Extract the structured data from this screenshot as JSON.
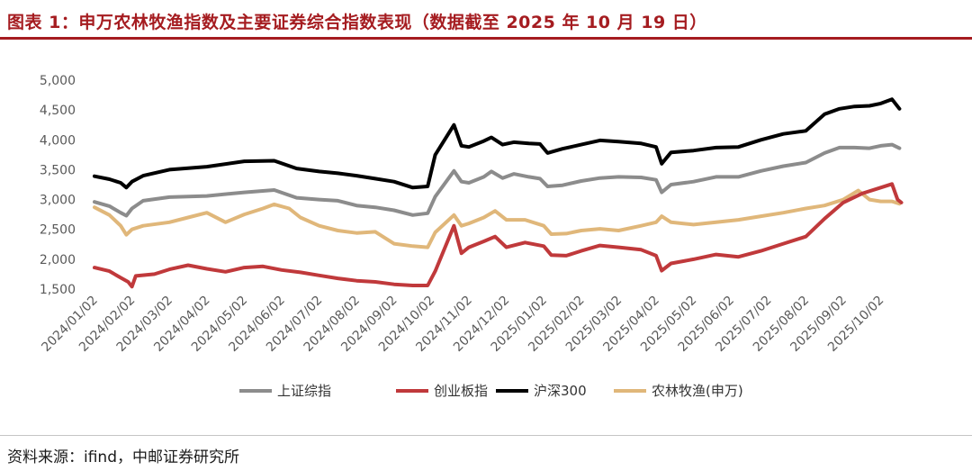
{
  "header": {
    "title": "图表 1：申万农林牧渔指数及主要证券综合指数表现（数据截至 2025 年 10 月 19 日）"
  },
  "footer": {
    "source": "资料来源：ifind，中邮证券研究所"
  },
  "colors": {
    "accent": "#a51c20",
    "shanghai": "#8c8c8c",
    "chinext": "#c0393b",
    "hs300": "#000000",
    "agri": "#e0b77a"
  },
  "chart_data": {
    "type": "line",
    "title": "申万农林牧渔指数及主要证券综合指数表现",
    "xlabel": "",
    "ylabel": "",
    "ylim": [
      1500,
      5000
    ],
    "yticks": [
      1500,
      2000,
      2500,
      3000,
      3500,
      4000,
      4500,
      5000
    ],
    "ytick_labels": [
      "1,500",
      "2,000",
      "2,500",
      "3,000",
      "3,500",
      "4,000",
      "4,500",
      "5,000"
    ],
    "x": [
      "2024/01/02",
      "2024/02/02",
      "2024/03/02",
      "2024/04/02",
      "2024/05/02",
      "2024/06/02",
      "2024/07/02",
      "2024/08/02",
      "2024/09/02",
      "2024/10/02",
      "2024/11/02",
      "2024/12/02",
      "2025/01/02",
      "2025/02/02",
      "2025/03/02",
      "2025/04/02",
      "2025/05/02",
      "2025/06/02",
      "2025/07/02",
      "2025/08/02",
      "2025/09/02",
      "2025/10/02"
    ],
    "legend_position": "bottom-center",
    "grid": false,
    "series": [
      {
        "name": "上证综指",
        "color": "#8c8c8c",
        "values": [
          [
            0,
            2960
          ],
          [
            0.4,
            2890
          ],
          [
            0.7,
            2780
          ],
          [
            0.85,
            2730
          ],
          [
            1.0,
            2850
          ],
          [
            1.3,
            2980
          ],
          [
            2.0,
            3040
          ],
          [
            3.0,
            3060
          ],
          [
            4.0,
            3120
          ],
          [
            4.8,
            3160
          ],
          [
            5.4,
            3030
          ],
          [
            6.0,
            3000
          ],
          [
            6.5,
            2980
          ],
          [
            7.0,
            2900
          ],
          [
            7.5,
            2870
          ],
          [
            8.0,
            2820
          ],
          [
            8.5,
            2740
          ],
          [
            8.9,
            2770
          ],
          [
            9.1,
            3050
          ],
          [
            9.6,
            3480
          ],
          [
            9.8,
            3300
          ],
          [
            10.0,
            3280
          ],
          [
            10.4,
            3380
          ],
          [
            10.6,
            3470
          ],
          [
            10.9,
            3360
          ],
          [
            11.2,
            3430
          ],
          [
            11.6,
            3380
          ],
          [
            11.9,
            3350
          ],
          [
            12.1,
            3220
          ],
          [
            12.5,
            3240
          ],
          [
            13.0,
            3310
          ],
          [
            13.5,
            3360
          ],
          [
            14.0,
            3380
          ],
          [
            14.6,
            3370
          ],
          [
            15.0,
            3330
          ],
          [
            15.15,
            3120
          ],
          [
            15.4,
            3250
          ],
          [
            16.0,
            3300
          ],
          [
            16.6,
            3380
          ],
          [
            17.2,
            3380
          ],
          [
            17.8,
            3480
          ],
          [
            18.4,
            3560
          ],
          [
            19.0,
            3620
          ],
          [
            19.5,
            3780
          ],
          [
            19.9,
            3870
          ],
          [
            20.3,
            3870
          ],
          [
            20.7,
            3860
          ],
          [
            21.0,
            3900
          ],
          [
            21.3,
            3920
          ],
          [
            21.5,
            3860
          ]
        ]
      },
      {
        "name": "创业板指",
        "color": "#c0393b",
        "values": [
          [
            0,
            1860
          ],
          [
            0.4,
            1800
          ],
          [
            0.7,
            1690
          ],
          [
            0.9,
            1620
          ],
          [
            1.0,
            1540
          ],
          [
            1.1,
            1720
          ],
          [
            1.6,
            1750
          ],
          [
            2.0,
            1830
          ],
          [
            2.5,
            1900
          ],
          [
            3.0,
            1840
          ],
          [
            3.5,
            1790
          ],
          [
            4.0,
            1860
          ],
          [
            4.5,
            1880
          ],
          [
            5.0,
            1820
          ],
          [
            5.5,
            1780
          ],
          [
            6.0,
            1730
          ],
          [
            6.5,
            1680
          ],
          [
            7.0,
            1640
          ],
          [
            7.5,
            1620
          ],
          [
            8.0,
            1580
          ],
          [
            8.5,
            1560
          ],
          [
            8.9,
            1560
          ],
          [
            9.1,
            1800
          ],
          [
            9.6,
            2560
          ],
          [
            9.8,
            2100
          ],
          [
            10.0,
            2200
          ],
          [
            10.4,
            2300
          ],
          [
            10.7,
            2380
          ],
          [
            11.0,
            2200
          ],
          [
            11.5,
            2280
          ],
          [
            12.0,
            2220
          ],
          [
            12.2,
            2070
          ],
          [
            12.6,
            2060
          ],
          [
            13.0,
            2140
          ],
          [
            13.5,
            2230
          ],
          [
            14.0,
            2200
          ],
          [
            14.6,
            2160
          ],
          [
            15.0,
            2060
          ],
          [
            15.15,
            1810
          ],
          [
            15.4,
            1930
          ],
          [
            16.0,
            2000
          ],
          [
            16.6,
            2080
          ],
          [
            17.2,
            2040
          ],
          [
            17.8,
            2140
          ],
          [
            18.4,
            2260
          ],
          [
            19.0,
            2380
          ],
          [
            19.5,
            2680
          ],
          [
            20.0,
            2950
          ],
          [
            20.5,
            3100
          ],
          [
            21.0,
            3200
          ],
          [
            21.3,
            3260
          ],
          [
            21.45,
            3000
          ],
          [
            21.55,
            2950
          ]
        ]
      },
      {
        "name": "沪深300",
        "color": "#000000",
        "values": [
          [
            0,
            3390
          ],
          [
            0.4,
            3340
          ],
          [
            0.7,
            3280
          ],
          [
            0.85,
            3200
          ],
          [
            1.0,
            3300
          ],
          [
            1.3,
            3400
          ],
          [
            2.0,
            3500
          ],
          [
            3.0,
            3550
          ],
          [
            4.0,
            3640
          ],
          [
            4.8,
            3650
          ],
          [
            5.4,
            3520
          ],
          [
            6.0,
            3470
          ],
          [
            6.5,
            3440
          ],
          [
            7.0,
            3400
          ],
          [
            7.5,
            3350
          ],
          [
            8.0,
            3300
          ],
          [
            8.5,
            3200
          ],
          [
            8.9,
            3220
          ],
          [
            9.1,
            3750
          ],
          [
            9.6,
            4250
          ],
          [
            9.8,
            3900
          ],
          [
            10.0,
            3880
          ],
          [
            10.4,
            3980
          ],
          [
            10.6,
            4040
          ],
          [
            10.9,
            3920
          ],
          [
            11.2,
            3960
          ],
          [
            11.6,
            3940
          ],
          [
            11.9,
            3930
          ],
          [
            12.1,
            3780
          ],
          [
            12.5,
            3850
          ],
          [
            13.0,
            3920
          ],
          [
            13.5,
            3990
          ],
          [
            14.0,
            3970
          ],
          [
            14.6,
            3940
          ],
          [
            15.0,
            3880
          ],
          [
            15.15,
            3600
          ],
          [
            15.4,
            3790
          ],
          [
            16.0,
            3820
          ],
          [
            16.6,
            3870
          ],
          [
            17.2,
            3880
          ],
          [
            17.8,
            4000
          ],
          [
            18.4,
            4100
          ],
          [
            19.0,
            4150
          ],
          [
            19.5,
            4430
          ],
          [
            19.9,
            4520
          ],
          [
            20.3,
            4560
          ],
          [
            20.7,
            4570
          ],
          [
            21.0,
            4610
          ],
          [
            21.3,
            4680
          ],
          [
            21.5,
            4520
          ]
        ]
      },
      {
        "name": "农林牧渔(申万)",
        "color": "#e0b77a",
        "values": [
          [
            0,
            2870
          ],
          [
            0.4,
            2740
          ],
          [
            0.7,
            2560
          ],
          [
            0.85,
            2410
          ],
          [
            1.0,
            2500
          ],
          [
            1.3,
            2560
          ],
          [
            2.0,
            2620
          ],
          [
            2.5,
            2700
          ],
          [
            3.0,
            2780
          ],
          [
            3.5,
            2620
          ],
          [
            4.0,
            2750
          ],
          [
            4.5,
            2850
          ],
          [
            4.8,
            2920
          ],
          [
            5.2,
            2850
          ],
          [
            5.5,
            2700
          ],
          [
            6.0,
            2560
          ],
          [
            6.5,
            2480
          ],
          [
            7.0,
            2440
          ],
          [
            7.5,
            2460
          ],
          [
            8.0,
            2260
          ],
          [
            8.5,
            2220
          ],
          [
            8.9,
            2200
          ],
          [
            9.1,
            2450
          ],
          [
            9.6,
            2740
          ],
          [
            9.8,
            2560
          ],
          [
            10.0,
            2600
          ],
          [
            10.4,
            2700
          ],
          [
            10.7,
            2810
          ],
          [
            11.0,
            2660
          ],
          [
            11.5,
            2660
          ],
          [
            12.0,
            2560
          ],
          [
            12.2,
            2420
          ],
          [
            12.6,
            2430
          ],
          [
            13.0,
            2480
          ],
          [
            13.5,
            2510
          ],
          [
            14.0,
            2480
          ],
          [
            14.6,
            2560
          ],
          [
            15.0,
            2620
          ],
          [
            15.15,
            2720
          ],
          [
            15.4,
            2620
          ],
          [
            16.0,
            2580
          ],
          [
            16.6,
            2620
          ],
          [
            17.2,
            2660
          ],
          [
            17.8,
            2720
          ],
          [
            18.4,
            2780
          ],
          [
            19.0,
            2850
          ],
          [
            19.5,
            2900
          ],
          [
            20.0,
            3000
          ],
          [
            20.4,
            3150
          ],
          [
            20.7,
            3000
          ],
          [
            21.0,
            2970
          ],
          [
            21.3,
            2970
          ],
          [
            21.5,
            2930
          ]
        ]
      }
    ]
  }
}
